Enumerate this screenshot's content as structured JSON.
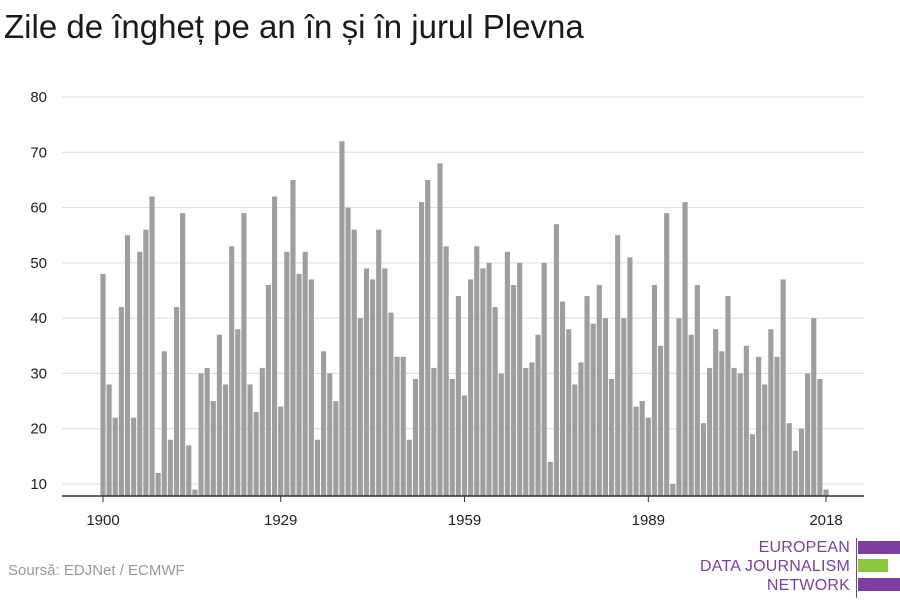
{
  "title": "Zile de îngheț pe an în și în jurul Plevna",
  "source": "Soursă: EDJNet / ECMWF",
  "logo": {
    "lines": [
      "EUROPEAN",
      "DATA JOURNALISM",
      "NETWORK"
    ],
    "color_purple": "#7b3fa0",
    "color_green": "#8dc63f"
  },
  "colors": {
    "bar": "#9e9e9e",
    "grid": "#dddddd",
    "axis": "#333333"
  },
  "chart_data": {
    "type": "bar",
    "title": "Zile de îngheț pe an în și în jurul Plevna",
    "xlabel": "",
    "ylabel": "",
    "x_ticks": [
      1900,
      1929,
      1959,
      1989,
      2018
    ],
    "y_ticks": [
      10,
      20,
      30,
      40,
      50,
      60,
      70,
      80
    ],
    "ylim": [
      8,
      80
    ],
    "grid": true,
    "x": [
      1900,
      1901,
      1902,
      1903,
      1904,
      1905,
      1906,
      1907,
      1908,
      1909,
      1910,
      1911,
      1912,
      1913,
      1914,
      1915,
      1916,
      1917,
      1918,
      1919,
      1920,
      1921,
      1922,
      1923,
      1924,
      1925,
      1926,
      1927,
      1928,
      1929,
      1930,
      1931,
      1932,
      1933,
      1934,
      1935,
      1936,
      1937,
      1938,
      1939,
      1940,
      1941,
      1942,
      1943,
      1944,
      1945,
      1946,
      1947,
      1948,
      1949,
      1950,
      1951,
      1952,
      1953,
      1954,
      1955,
      1956,
      1957,
      1958,
      1959,
      1960,
      1961,
      1962,
      1963,
      1964,
      1965,
      1966,
      1967,
      1968,
      1969,
      1970,
      1971,
      1972,
      1973,
      1974,
      1975,
      1976,
      1977,
      1978,
      1979,
      1980,
      1981,
      1982,
      1983,
      1984,
      1985,
      1986,
      1987,
      1988,
      1989,
      1990,
      1991,
      1992,
      1993,
      1994,
      1995,
      1996,
      1997,
      1998,
      1999,
      2000,
      2001,
      2002,
      2003,
      2004,
      2005,
      2006,
      2007,
      2008,
      2009,
      2010,
      2011,
      2012,
      2013,
      2014,
      2015,
      2016,
      2017,
      2018
    ],
    "values": [
      48,
      28,
      22,
      42,
      55,
      22,
      52,
      56,
      62,
      12,
      34,
      18,
      42,
      59,
      17,
      9,
      30,
      31,
      25,
      37,
      28,
      53,
      38,
      59,
      28,
      23,
      31,
      46,
      62,
      24,
      52,
      65,
      48,
      52,
      47,
      18,
      34,
      30,
      25,
      72,
      60,
      56,
      40,
      49,
      47,
      56,
      49,
      41,
      33,
      33,
      18,
      29,
      61,
      65,
      31,
      68,
      53,
      29,
      44,
      26,
      47,
      53,
      49,
      50,
      42,
      30,
      52,
      46,
      50,
      31,
      32,
      37,
      50,
      14,
      57,
      43,
      38,
      28,
      32,
      44,
      39,
      46,
      40,
      29,
      55,
      40,
      51,
      24,
      25,
      22,
      46,
      35,
      59,
      10,
      40,
      61,
      37,
      46,
      21,
      31,
      38,
      34,
      44,
      31,
      30,
      35,
      19,
      33,
      28,
      38,
      33,
      47,
      21,
      16,
      20,
      30,
      40,
      29,
      9
    ]
  }
}
